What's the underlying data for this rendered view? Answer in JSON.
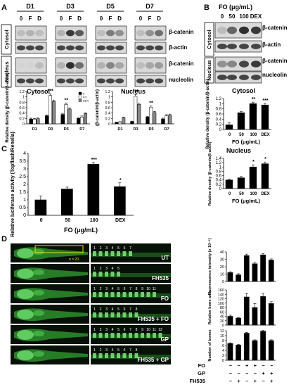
{
  "panel_letters": {
    "a": "A",
    "b": "B",
    "c": "C",
    "d": "D"
  },
  "panelA": {
    "groups": [
      "D1",
      "D3",
      "D5",
      "D7"
    ],
    "lane_labels": [
      "0",
      "F",
      "D"
    ],
    "rows": [
      "Cytosol",
      "Nucleus"
    ],
    "bands": [
      "β-catenin",
      "β-actin",
      "β-catenin",
      "nucleolin"
    ]
  },
  "panelB": {
    "header": "FO (μg/mL)",
    "lanes": [
      "0",
      "50",
      "100",
      "DEX"
    ],
    "bands": [
      "β-catenin",
      "β-actin",
      "β-catenin",
      "nucleolin"
    ],
    "rows": [
      "Cytosol",
      "Nucleus"
    ]
  },
  "icons": {
    "blot_band": "western-blot-band",
    "fish": "zebrafish-image"
  },
  "panelD": {
    "labels": [
      "UT",
      "FH535",
      "FO",
      "FH535 + FO",
      "GP",
      "FH535 + GP"
    ],
    "roi_note": "n = 20",
    "vert_numbers": [
      [
        "1",
        "2",
        "3",
        "4",
        "5",
        "6",
        "7"
      ],
      [
        "1",
        "2",
        "3",
        "4",
        "5"
      ],
      [
        "1",
        "2",
        "3",
        "4",
        "5",
        "6",
        "7",
        "8",
        "9",
        "10",
        "11"
      ],
      [
        "1",
        "2",
        "3",
        "4",
        "5",
        "6",
        "7",
        "8"
      ],
      [
        "1",
        "2",
        "3",
        "4",
        "5",
        "6",
        "7",
        "8",
        "9",
        "10",
        "11",
        "12"
      ],
      [
        "1",
        "2",
        "3",
        "4",
        "5",
        "6",
        "7",
        "8"
      ]
    ],
    "fo_row_label": "FO",
    "gp_row_label": "GP",
    "fh_row_label": "FH535",
    "fo_marks": [
      "−",
      "−",
      "+",
      "+",
      "−",
      "−"
    ],
    "gp_marks": [
      "−",
      "−",
      "−",
      "−",
      "+",
      "+"
    ],
    "fh_marks": [
      "−",
      "+",
      "−",
      "+",
      "−",
      "+"
    ]
  },
  "chart_data": [
    {
      "type": "bar",
      "title": "Cytosol",
      "ylabel": "Relative density (β-catenin/β-actin)",
      "categories": [
        "D1",
        "D3",
        "D5",
        "D7"
      ],
      "ylim": [
        0,
        1.2
      ],
      "yticks": [
        "0",
        "0.2",
        "0.4",
        "0.6",
        "0.8",
        "1",
        "1.2"
      ],
      "legend": [
        "0",
        "FO",
        "DEX"
      ],
      "series": [
        {
          "name": "0",
          "values": [
            0.18,
            0.3,
            0.35,
            0.2
          ],
          "errors": [
            0.03,
            0.03,
            0.04,
            0.03
          ]
        },
        {
          "name": "FO",
          "values": [
            0.17,
            1.05,
            0.72,
            0.25
          ],
          "errors": [
            0.03,
            0.06,
            0.05,
            0.04
          ]
        },
        {
          "name": "DEX",
          "values": [
            0.19,
            0.83,
            0.55,
            0.38
          ],
          "errors": [
            0.03,
            0.05,
            0.04,
            0.03
          ]
        }
      ],
      "annotations": [
        {
          "x": "D3",
          "text": "***"
        },
        {
          "x": "D5",
          "text": "**"
        }
      ]
    },
    {
      "type": "bar",
      "title": "Nucleus",
      "ylabel": "(β-catenin/β-actin)",
      "categories": [
        "D1",
        "D3",
        "D5",
        "D7"
      ],
      "ylim": [
        0,
        1.2
      ],
      "yticks": [
        "0",
        "0.2",
        "0.4",
        "0.6",
        "0.8",
        "1",
        "1.2"
      ],
      "series": [
        {
          "name": "0",
          "values": [
            0.05,
            0.08,
            0.25,
            0.18
          ],
          "errors": [
            0.02,
            0.02,
            0.03,
            0.03
          ]
        },
        {
          "name": "FO",
          "values": [
            0.06,
            1.02,
            0.62,
            0.3
          ],
          "errors": [
            0.02,
            0.07,
            0.05,
            0.04
          ]
        },
        {
          "name": "DEX",
          "values": [
            0.22,
            0.72,
            0.42,
            0.32
          ],
          "errors": [
            0.03,
            0.05,
            0.04,
            0.04
          ]
        }
      ],
      "annotations": [
        {
          "x": "D3",
          "text": "***"
        },
        {
          "x": "D5",
          "text": "**"
        }
      ]
    },
    {
      "type": "bar",
      "title": "Cytosol",
      "ylabel": "Relative density (β-catenin/β-actin)",
      "xlabel": "FO (μg/mL)",
      "categories": [
        "0",
        "50",
        "100",
        "DEX"
      ],
      "ylim": [
        0,
        1.2
      ],
      "yticks": [
        "0",
        "0.2",
        "0.4",
        "0.6",
        "0.8",
        "1",
        "1.2"
      ],
      "values": [
        0.18,
        0.65,
        1.0,
        0.95
      ],
      "errors": [
        0.08,
        0.04,
        0.06,
        0.06
      ],
      "annotations": [
        {
          "x": "100",
          "text": "**"
        },
        {
          "x": "DEX",
          "text": "***"
        }
      ]
    },
    {
      "type": "bar",
      "title": "Nucleus",
      "ylabel": "Relative density (β-catenin/β-actin)",
      "xlabel": "FO (μg/mL)",
      "categories": [
        "0",
        "50",
        "100",
        "DEX"
      ],
      "ylim": [
        0,
        1.4
      ],
      "yticks": [
        "0",
        "0.2",
        "0.4",
        "0.6",
        "0.8",
        "1",
        "1.2",
        "1.4"
      ],
      "values": [
        0.4,
        0.5,
        1.0,
        1.15
      ],
      "errors": [
        0.04,
        0.06,
        0.1,
        0.08
      ],
      "annotations": [
        {
          "x": "100",
          "text": "*"
        },
        {
          "x": "DEX",
          "text": "*"
        }
      ]
    },
    {
      "type": "bar",
      "ylabel": "Relative luciferase activity (Topflash/Renella)",
      "xlabel": "FO (μg/mL)",
      "categories": [
        "0",
        "50",
        "100",
        "DEX"
      ],
      "ylim": [
        0,
        4
      ],
      "yticks": [
        "0",
        "0.5",
        "1",
        "1.5",
        "2",
        "2.5",
        "3",
        "3.5",
        "4"
      ],
      "values": [
        1.0,
        1.7,
        3.3,
        1.85
      ],
      "errors": [
        0.25,
        0.12,
        0.12,
        0.25
      ],
      "annotations": [
        {
          "x": "100",
          "text": "***"
        },
        {
          "x": "DEX",
          "text": "*"
        }
      ]
    },
    {
      "type": "bar",
      "ylabel": "Fluorescence intensity (x 10⁻⁶)",
      "categories": [
        "UT",
        "FH535",
        "FO",
        "FH535+FO",
        "GP",
        "FH535+GP"
      ],
      "ylim": [
        0,
        40
      ],
      "yticks": [
        "0",
        "10",
        "20",
        "30",
        "40"
      ],
      "values": [
        12,
        9,
        35,
        24,
        36,
        29
      ],
      "errors": [
        1.2,
        1.5,
        2,
        2,
        1.5,
        1.5
      ]
    },
    {
      "type": "bar",
      "ylabel": "Relative bone area",
      "categories": [
        "UT",
        "FH535",
        "FO",
        "FH535+FO",
        "GP",
        "FH535+GP"
      ],
      "ylim": [
        0,
        160
      ],
      "yticks": [
        "0",
        "20",
        "40",
        "60",
        "80",
        "100",
        "120",
        "140",
        "160"
      ],
      "values": [
        40,
        32,
        128,
        80,
        130,
        98
      ],
      "errors": [
        5,
        3,
        15,
        18,
        14,
        8
      ]
    },
    {
      "type": "bar",
      "ylabel": "Number of bones",
      "categories": [
        "UT",
        "FH535",
        "FO",
        "FH535+FO",
        "GP",
        "FH535+GP"
      ],
      "ylim": [
        0,
        12
      ],
      "yticks": [
        "0",
        "2",
        "4",
        "6",
        "8",
        "10",
        "12"
      ],
      "values": [
        6.8,
        6.2,
        11,
        8,
        11.8,
        8
      ],
      "errors": [
        0.3,
        0.3,
        0.3,
        0.3,
        0.3,
        0.3
      ]
    }
  ]
}
